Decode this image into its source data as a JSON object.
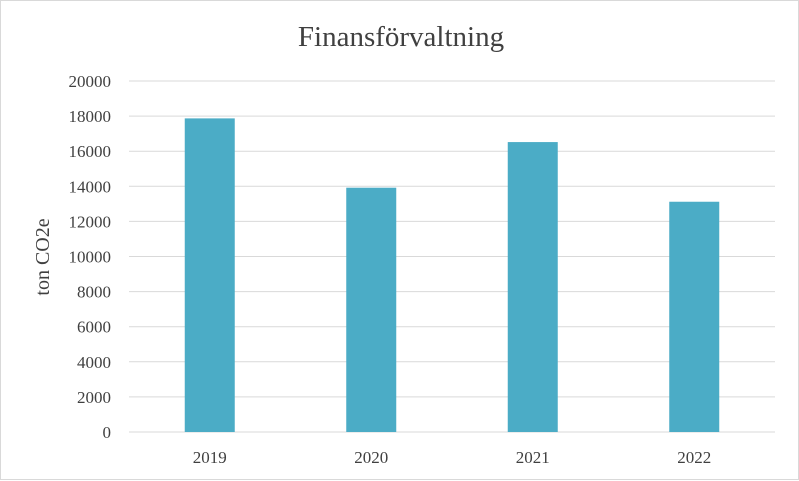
{
  "chart_data": {
    "type": "bar",
    "title": "Finansförvaltning",
    "xlabel": "",
    "ylabel": "ton CO2e",
    "categories": [
      "2019",
      "2020",
      "2021",
      "2022"
    ],
    "values": [
      17870,
      13920,
      16520,
      13120
    ],
    "ylim": [
      0,
      20000
    ],
    "yticks": [
      0,
      2000,
      4000,
      6000,
      8000,
      10000,
      12000,
      14000,
      16000,
      18000,
      20000
    ],
    "grid": true,
    "legend": "none",
    "bar_color": "#4bacc6",
    "grid_color": "#d9d9d9"
  }
}
